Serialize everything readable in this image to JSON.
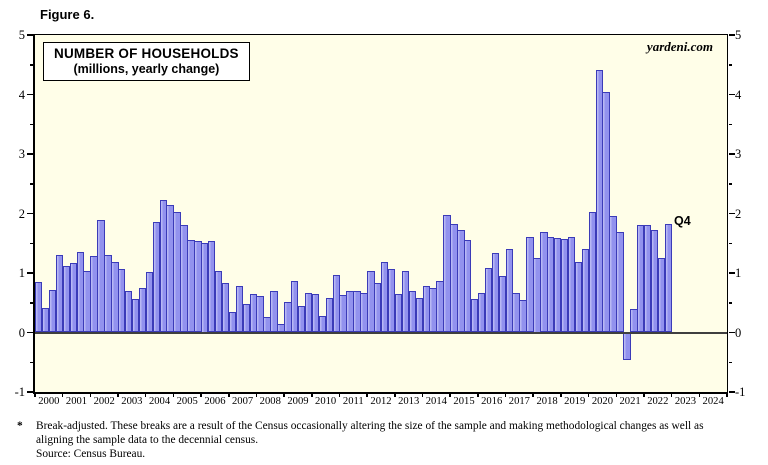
{
  "figure_label": "Figure 6.",
  "title_line1": "NUMBER OF HOUSEHOLDS",
  "title_line2": "(millions, yearly change)",
  "watermark": "yardeni.com",
  "annotation_q4": "Q4",
  "footnote": {
    "marker": "*",
    "line1": "Break-adjusted. These breaks are a result of the Census occasionally altering the size of the sample and making methodological changes as well as",
    "line2": "aligning the sample data to the decennial census.",
    "source": "Source: Census Bureau."
  },
  "colors": {
    "plot_background": "#FFFEE8",
    "bar_fill": "#9292EE",
    "bar_edge": "#3B3BB8",
    "zero_line": "#3F3F3F",
    "axis": "#000000"
  },
  "chart_data": {
    "type": "bar",
    "title": "NUMBER OF HOUSEHOLDS (millions, yearly change)",
    "ylabel": "millions, yearly change",
    "ylim": [
      -1,
      5
    ],
    "y_ticks": [
      -1,
      0,
      1,
      2,
      3,
      4,
      5
    ],
    "x_axis_years": [
      "2000",
      "2001",
      "2002",
      "2003",
      "2004",
      "2005",
      "2006",
      "2007",
      "2008",
      "2009",
      "2010",
      "2011",
      "2012",
      "2013",
      "2014",
      "2015",
      "2016",
      "2017",
      "2018",
      "2019",
      "2020",
      "2021",
      "2022",
      "2023",
      "2024"
    ],
    "frequency": "quarterly",
    "data_start": "2000 Q1",
    "data_end": "2022 Q4",
    "last_point_label": "Q4",
    "grid": false,
    "series": [
      {
        "name": "Number of households, yearly change (millions)",
        "values": [
          0.85,
          0.41,
          0.72,
          1.31,
          1.12,
          1.16,
          1.36,
          1.04,
          1.28,
          1.89,
          1.3,
          1.19,
          1.06,
          0.69,
          0.56,
          0.74,
          1.02,
          1.86,
          2.23,
          2.14,
          2.03,
          1.81,
          1.55,
          1.53,
          1.5,
          1.53,
          1.03,
          0.83,
          0.35,
          0.78,
          0.48,
          0.64,
          0.62,
          0.26,
          0.69,
          0.15,
          0.52,
          0.86,
          0.44,
          0.67,
          0.65,
          0.28,
          0.58,
          0.97,
          0.63,
          0.69,
          0.7,
          0.66,
          1.04,
          0.84,
          1.19,
          1.06,
          0.65,
          1.04,
          0.69,
          0.58,
          0.78,
          0.74,
          0.86,
          1.97,
          1.82,
          1.72,
          1.55,
          0.56,
          0.67,
          1.08,
          1.34,
          0.95,
          1.4,
          0.66,
          0.55,
          1.6,
          1.25,
          1.69,
          1.61,
          1.58,
          1.57,
          1.61,
          1.19,
          1.4,
          2.03,
          4.41,
          4.05,
          1.96,
          1.69,
          -0.46,
          0.39,
          1.81,
          1.81,
          1.73,
          1.26,
          1.82
        ]
      }
    ]
  }
}
